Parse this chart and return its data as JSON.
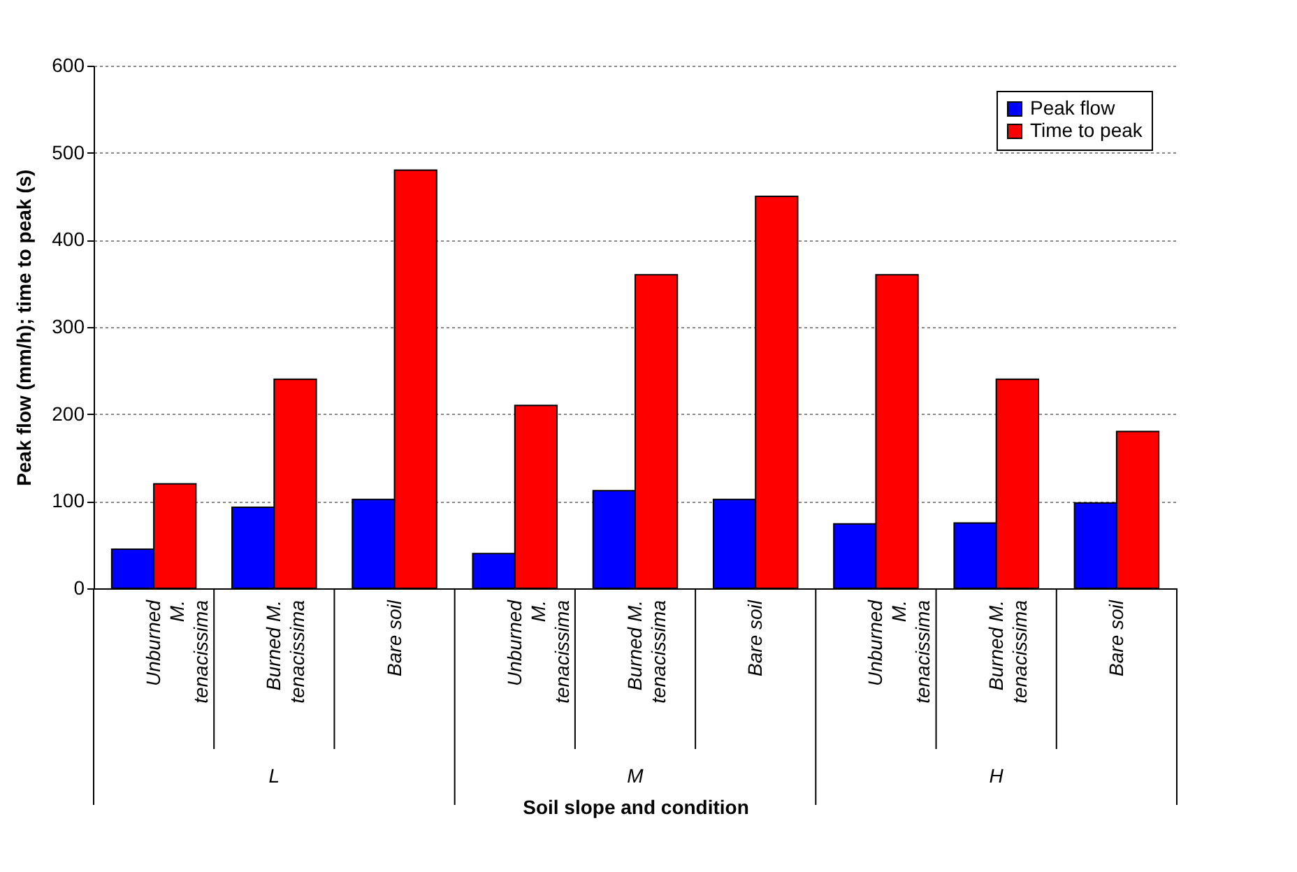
{
  "chart_data": {
    "type": "bar",
    "xlabel": "Soil slope and condition",
    "ylabel": "Peak flow (mm/h); time to peak (s)",
    "categories": [
      "Unburned M. tenacissima",
      "Burned M. tenacissima",
      "Bare soil",
      "Unburned M. tenacissima",
      "Burned M. tenacissima",
      "Bare soil",
      "Unburned M. tenacissima",
      "Burned M. tenacissima",
      "Bare soil"
    ],
    "series": [
      {
        "name": "Peak flow",
        "color": "#0000ff",
        "values": [
          45,
          93,
          102,
          40,
          112,
          102,
          74,
          75,
          98
        ]
      },
      {
        "name": "Time to peak",
        "color": "#ff0000",
        "values": [
          120,
          240,
          480,
          210,
          360,
          450,
          360,
          240,
          180
        ]
      }
    ],
    "annotations": [
      "L",
      "M",
      "H"
    ],
    "ylim": [
      0,
      600
    ],
    "yticks": [
      0,
      100,
      200,
      300,
      400,
      500,
      600
    ],
    "grid": "y",
    "legend": "top right"
  }
}
